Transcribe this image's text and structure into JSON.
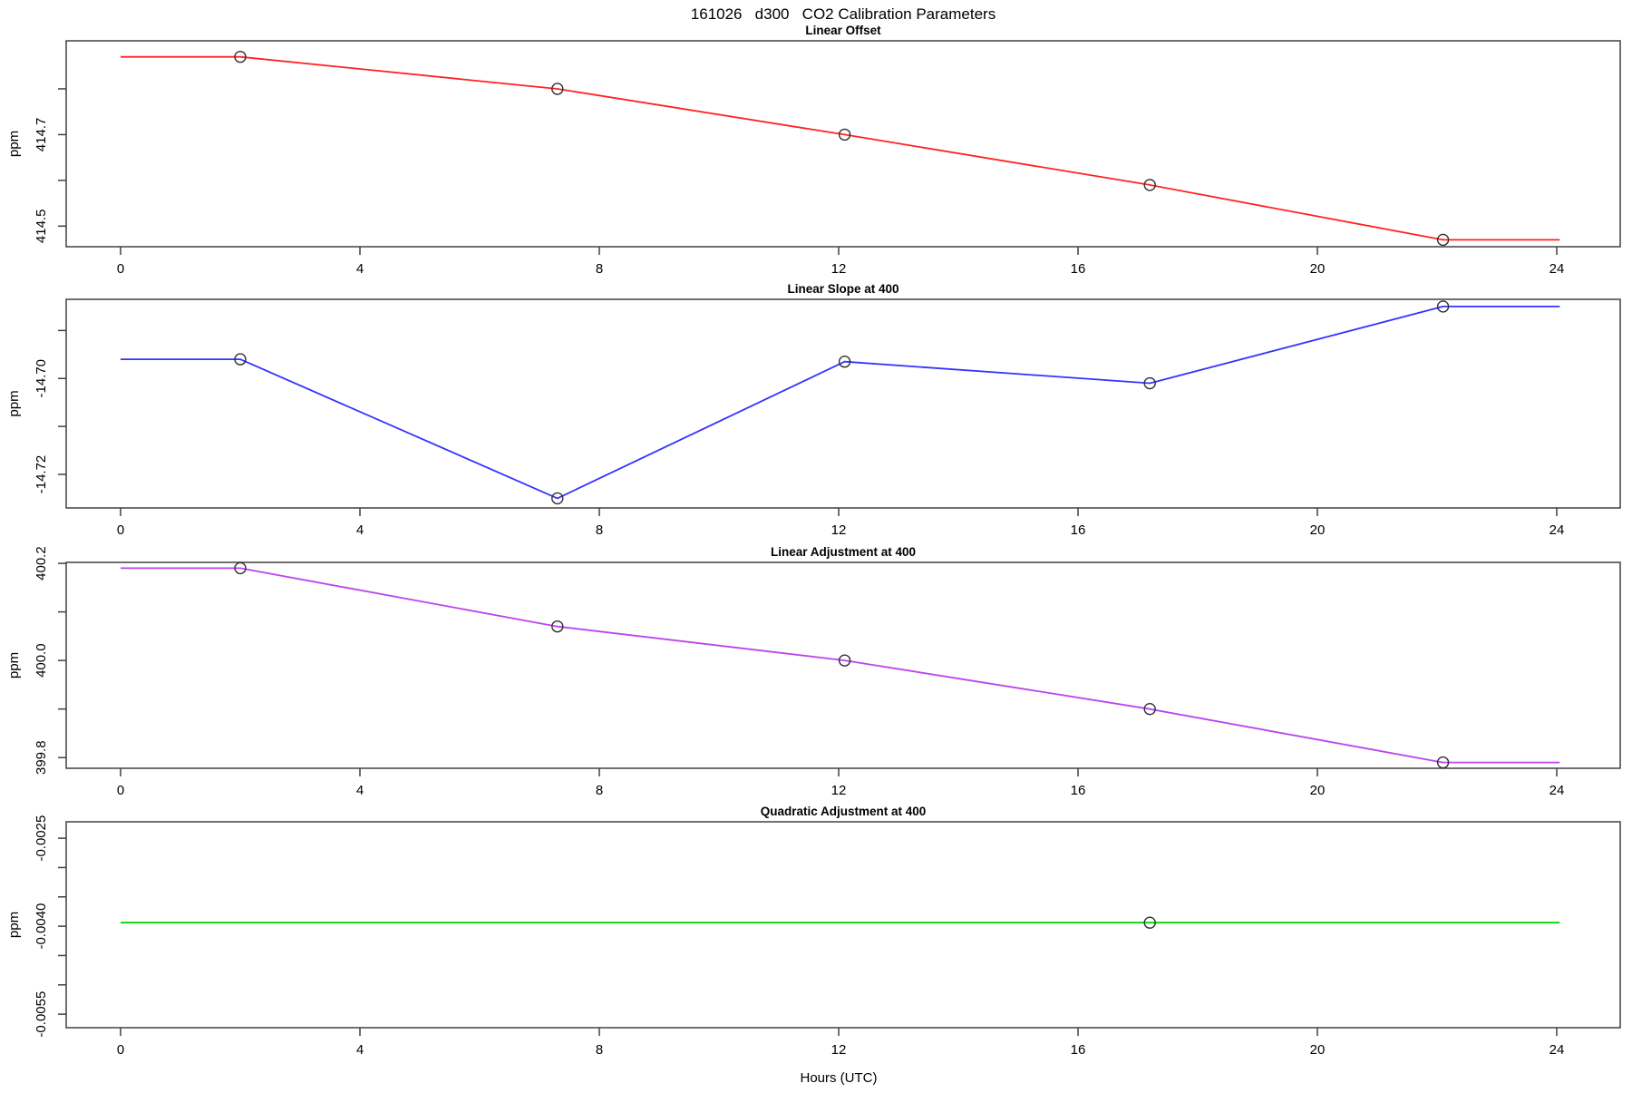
{
  "title": "161026   d300   CO2 Calibration Parameters",
  "xlabel": "Hours (UTC)",
  "x_axis": {
    "ticks": [
      0,
      4,
      8,
      12,
      16,
      20,
      24
    ],
    "range": [
      0,
      24.1
    ]
  },
  "chart_data": [
    {
      "type": "line",
      "title": "Linear Offset",
      "ylabel": "ppm",
      "color": "#ff2222",
      "ylim": [
        414.455,
        414.905
      ],
      "yticks": [
        {
          "v": 414.5,
          "label": "414.5"
        },
        {
          "v": 414.6,
          "label": ""
        },
        {
          "v": 414.7,
          "label": "414.7"
        },
        {
          "v": 414.8,
          "label": ""
        }
      ],
      "x": [
        2.0,
        7.3,
        12.1,
        17.2,
        22.1
      ],
      "y": [
        414.87,
        414.8,
        414.7,
        414.59,
        414.47
      ],
      "line_x": [
        0,
        2.0,
        7.3,
        12.1,
        17.2,
        22.1,
        24.05
      ],
      "line_y": [
        414.87,
        414.87,
        414.8,
        414.7,
        414.59,
        414.47,
        414.47
      ]
    },
    {
      "type": "line",
      "title": "Linear Slope at 400",
      "ylabel": "ppm",
      "color": "#3333ff",
      "ylim": [
        -14.727,
        -14.6835
      ],
      "yticks": [
        {
          "v": -14.72,
          "label": "-14.72"
        },
        {
          "v": -14.71,
          "label": ""
        },
        {
          "v": -14.7,
          "label": "-14.70"
        },
        {
          "v": -14.69,
          "label": ""
        }
      ],
      "x": [
        2.0,
        7.3,
        12.1,
        17.2,
        22.1
      ],
      "y": [
        -14.696,
        -14.725,
        -14.6965,
        -14.701,
        -14.685
      ],
      "line_x": [
        0,
        2.0,
        7.3,
        12.1,
        17.2,
        22.1,
        24.05
      ],
      "line_y": [
        -14.696,
        -14.696,
        -14.725,
        -14.6965,
        -14.701,
        -14.685,
        -14.685
      ]
    },
    {
      "type": "line",
      "title": "Linear Adjustment at 400",
      "ylabel": "ppm",
      "color": "#bb44ee",
      "ylim": [
        399.778,
        400.202
      ],
      "yticks": [
        {
          "v": 399.8,
          "label": "399.8"
        },
        {
          "v": 399.9,
          "label": ""
        },
        {
          "v": 400.0,
          "label": "400.0"
        },
        {
          "v": 400.1,
          "label": ""
        },
        {
          "v": 400.2,
          "label": "400.2"
        }
      ],
      "x": [
        2.0,
        7.3,
        12.1,
        17.2,
        22.1
      ],
      "y": [
        400.19,
        400.07,
        400.0,
        399.9,
        399.79
      ],
      "line_x": [
        0,
        2.0,
        7.3,
        12.1,
        17.2,
        22.1,
        24.05
      ],
      "line_y": [
        400.19,
        400.19,
        400.07,
        400.0,
        399.9,
        399.79,
        399.79
      ]
    },
    {
      "type": "line",
      "title": "Quadratic Adjustment at 400",
      "ylabel": "ppm",
      "color": "#00d500",
      "ylim": [
        -0.00573,
        -0.00222
      ],
      "yticks": [
        {
          "v": -0.0055,
          "label": "-0.0055"
        },
        {
          "v": -0.005,
          "label": ""
        },
        {
          "v": -0.0045,
          "label": ""
        },
        {
          "v": -0.004,
          "label": "-0.0040"
        },
        {
          "v": -0.0035,
          "label": ""
        },
        {
          "v": -0.003,
          "label": ""
        },
        {
          "v": -0.0025,
          "label": "-0.0025"
        }
      ],
      "x": [
        17.2
      ],
      "y": [
        -0.00394
      ],
      "line_x": [
        0,
        24.05
      ],
      "line_y": [
        -0.00394,
        -0.00394
      ]
    }
  ]
}
